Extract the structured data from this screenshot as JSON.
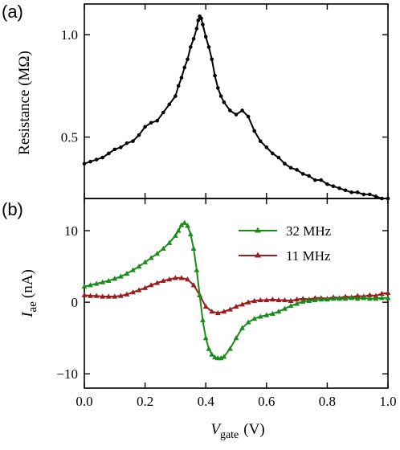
{
  "chart_data": [
    {
      "panel": "(a)",
      "type": "line",
      "ylabel": "Resistance (MΩ)",
      "xlim": [
        0.0,
        1.0
      ],
      "ylim": [
        0.2,
        1.15
      ],
      "yticks": [
        0.5,
        1.0
      ],
      "ytick_labels": [
        "0.5",
        "1.0"
      ],
      "grid": false,
      "series": [
        {
          "color": "#000000",
          "marker": "circle",
          "x": [
            0.0,
            0.02,
            0.04,
            0.06,
            0.08,
            0.1,
            0.12,
            0.14,
            0.16,
            0.18,
            0.2,
            0.22,
            0.24,
            0.26,
            0.28,
            0.3,
            0.31,
            0.32,
            0.33,
            0.34,
            0.35,
            0.36,
            0.37,
            0.375,
            0.38,
            0.385,
            0.39,
            0.4,
            0.41,
            0.42,
            0.43,
            0.44,
            0.45,
            0.46,
            0.48,
            0.5,
            0.52,
            0.54,
            0.56,
            0.58,
            0.6,
            0.62,
            0.64,
            0.66,
            0.68,
            0.7,
            0.72,
            0.74,
            0.76,
            0.78,
            0.8,
            0.82,
            0.84,
            0.86,
            0.88,
            0.9,
            0.92,
            0.94,
            0.96,
            0.98,
            1.0
          ],
          "y": [
            0.37,
            0.38,
            0.39,
            0.4,
            0.42,
            0.44,
            0.45,
            0.47,
            0.48,
            0.51,
            0.55,
            0.57,
            0.58,
            0.62,
            0.66,
            0.7,
            0.75,
            0.79,
            0.84,
            0.88,
            0.94,
            0.98,
            1.03,
            1.07,
            1.09,
            1.08,
            1.05,
            0.99,
            0.94,
            0.88,
            0.8,
            0.74,
            0.7,
            0.67,
            0.63,
            0.61,
            0.63,
            0.6,
            0.53,
            0.48,
            0.45,
            0.42,
            0.4,
            0.37,
            0.35,
            0.34,
            0.32,
            0.31,
            0.29,
            0.29,
            0.27,
            0.26,
            0.25,
            0.24,
            0.23,
            0.23,
            0.22,
            0.22,
            0.21,
            0.2,
            0.2
          ]
        }
      ]
    },
    {
      "panel": "(b)",
      "type": "line",
      "xlabel": "V",
      "xlabel_sub": "gate",
      "xlabel_unit": "(V)",
      "ylabel": "I",
      "ylabel_sub": "ae",
      "ylabel_unit": "(nA)",
      "xlim": [
        0.0,
        1.0
      ],
      "ylim": [
        -12,
        14.5
      ],
      "xticks": [
        0.0,
        0.2,
        0.4,
        0.6,
        0.8,
        1.0
      ],
      "xtick_labels": [
        "0.0",
        "0.2",
        "0.4",
        "0.6",
        "0.8",
        "1.0"
      ],
      "yticks": [
        -10,
        0,
        10
      ],
      "ytick_labels": [
        "−10",
        "0",
        "10"
      ],
      "grid": false,
      "legend_position": "top-right",
      "series": [
        {
          "name": "32 MHz",
          "color": "#1a8c1a",
          "marker": "triangle",
          "x": [
            0.0,
            0.02,
            0.04,
            0.06,
            0.08,
            0.1,
            0.12,
            0.14,
            0.16,
            0.18,
            0.2,
            0.22,
            0.24,
            0.26,
            0.28,
            0.3,
            0.31,
            0.32,
            0.33,
            0.34,
            0.35,
            0.36,
            0.37,
            0.38,
            0.39,
            0.4,
            0.41,
            0.42,
            0.43,
            0.44,
            0.45,
            0.46,
            0.48,
            0.5,
            0.52,
            0.54,
            0.56,
            0.58,
            0.6,
            0.62,
            0.64,
            0.66,
            0.68,
            0.7,
            0.72,
            0.74,
            0.76,
            0.78,
            0.8,
            0.82,
            0.84,
            0.86,
            0.88,
            0.9,
            0.92,
            0.94,
            0.96,
            0.98,
            1.0
          ],
          "y": [
            2.2,
            2.4,
            2.6,
            2.8,
            3.0,
            3.3,
            3.6,
            4.0,
            4.5,
            5.0,
            5.6,
            6.2,
            6.8,
            7.5,
            8.3,
            9.3,
            10.0,
            10.8,
            11.1,
            10.7,
            9.5,
            7.5,
            4.5,
            1.0,
            -2.5,
            -5.0,
            -6.5,
            -7.3,
            -7.7,
            -7.8,
            -7.8,
            -7.6,
            -6.5,
            -5.0,
            -3.6,
            -2.8,
            -2.3,
            -2.0,
            -1.8,
            -1.6,
            -1.3,
            -0.9,
            -0.5,
            -0.2,
            0.1,
            0.2,
            0.3,
            0.4,
            0.4,
            0.5,
            0.5,
            0.5,
            0.6,
            0.5,
            0.6,
            0.5,
            0.5,
            0.6,
            0.6
          ]
        },
        {
          "name": "11 MHz",
          "color": "#9b1c1c",
          "marker": "triangle",
          "x": [
            0.0,
            0.02,
            0.04,
            0.06,
            0.08,
            0.1,
            0.12,
            0.14,
            0.16,
            0.18,
            0.2,
            0.22,
            0.24,
            0.26,
            0.28,
            0.3,
            0.32,
            0.34,
            0.36,
            0.38,
            0.4,
            0.42,
            0.44,
            0.46,
            0.48,
            0.5,
            0.52,
            0.54,
            0.56,
            0.58,
            0.6,
            0.62,
            0.64,
            0.66,
            0.68,
            0.7,
            0.72,
            0.74,
            0.76,
            0.78,
            0.8,
            0.82,
            0.84,
            0.86,
            0.88,
            0.9,
            0.92,
            0.94,
            0.96,
            0.98,
            1.0
          ],
          "y": [
            1.0,
            0.9,
            0.9,
            0.8,
            0.8,
            0.8,
            0.9,
            1.1,
            1.4,
            1.7,
            2.0,
            2.4,
            2.7,
            3.0,
            3.2,
            3.4,
            3.4,
            3.2,
            2.4,
            1.0,
            -0.6,
            -1.3,
            -1.5,
            -1.3,
            -1.0,
            -0.6,
            -0.3,
            0.0,
            0.2,
            0.3,
            0.3,
            0.4,
            0.3,
            0.3,
            0.2,
            0.4,
            0.5,
            0.4,
            0.6,
            0.6,
            0.5,
            0.7,
            0.6,
            0.8,
            0.7,
            0.9,
            0.8,
            1.0,
            0.9,
            1.2,
            1.3
          ]
        }
      ]
    }
  ]
}
